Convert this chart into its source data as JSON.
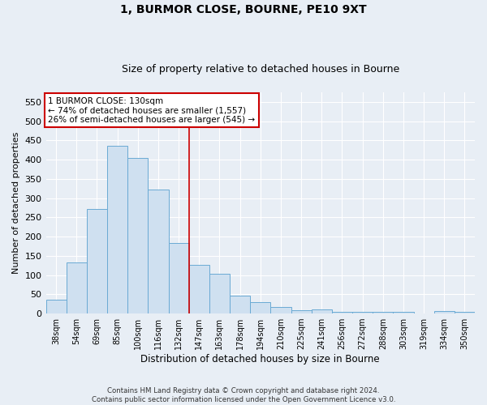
{
  "title": "1, BURMOR CLOSE, BOURNE, PE10 9XT",
  "subtitle": "Size of property relative to detached houses in Bourne",
  "xlabel": "Distribution of detached houses by size in Bourne",
  "ylabel": "Number of detached properties",
  "bar_color": "#cfe0f0",
  "bar_edge_color": "#6aaad4",
  "categories": [
    "38sqm",
    "54sqm",
    "69sqm",
    "85sqm",
    "100sqm",
    "116sqm",
    "132sqm",
    "147sqm",
    "163sqm",
    "178sqm",
    "194sqm",
    "210sqm",
    "225sqm",
    "241sqm",
    "256sqm",
    "272sqm",
    "288sqm",
    "303sqm",
    "319sqm",
    "334sqm",
    "350sqm"
  ],
  "values": [
    35,
    133,
    272,
    435,
    405,
    322,
    184,
    126,
    104,
    46,
    29,
    17,
    8,
    10,
    4,
    5,
    4,
    5,
    0,
    6,
    5
  ],
  "ylim": [
    0,
    575
  ],
  "yticks": [
    0,
    50,
    100,
    150,
    200,
    250,
    300,
    350,
    400,
    450,
    500,
    550
  ],
  "vline_x": 6.5,
  "vline_color": "#cc0000",
  "annotation_text": "1 BURMOR CLOSE: 130sqm\n← 74% of detached houses are smaller (1,557)\n26% of semi-detached houses are larger (545) →",
  "annotation_box_color": "#ffffff",
  "annotation_box_edge": "#cc0000",
  "footer_line1": "Contains HM Land Registry data © Crown copyright and database right 2024.",
  "footer_line2": "Contains public sector information licensed under the Open Government Licence v3.0.",
  "background_color": "#e8eef5",
  "plot_background": "#e8eef5",
  "grid_color": "#ffffff",
  "title_fontsize": 10,
  "subtitle_fontsize": 9
}
